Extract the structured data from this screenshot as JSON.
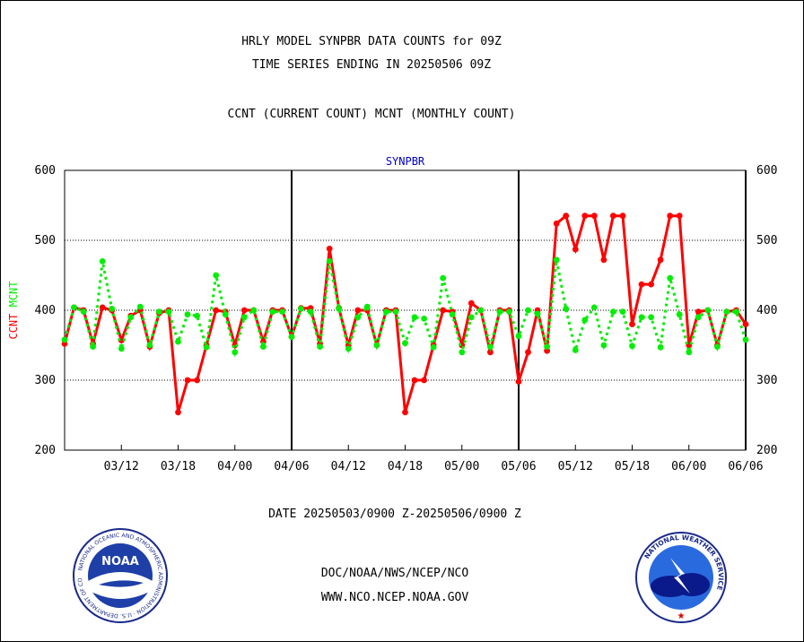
{
  "header": {
    "line1": "HRLY MODEL SYNPBR DATA COUNTS for 09Z",
    "line2": "TIME SERIES ENDING IN 20250506 09Z",
    "line3": "CCNT (CURRENT COUNT) MCNT (MONTHLY COUNT)"
  },
  "footer": {
    "date_range": "DATE 20250503/0900 Z-20250506/0900 Z",
    "org": "DOC/NOAA/NWS/NCEP/NCO",
    "url": "WWW.NCO.NCEP.NOAA.GOV"
  },
  "logos": {
    "noaa_text": "NOAA",
    "noaa_ring": "NATIONAL OCEANIC AND ATMOSPHERIC ADMINISTRATION · U.S. DEPARTMENT OF COMMERCE",
    "nws_ring": "NATIONAL WEATHER SERVICE"
  },
  "colors": {
    "ccnt": "#ff0000",
    "mcnt": "#00ee00",
    "title": "#0000cc",
    "grid": "#000000"
  },
  "chart_data": {
    "type": "line",
    "title": "SYNPBR",
    "ylabel_left": [
      "CCNT",
      "MCNT"
    ],
    "ylim": [
      200,
      600
    ],
    "yticks": [
      200,
      300,
      400,
      500,
      600
    ],
    "xtick_labels": [
      "03/12",
      "03/18",
      "04/00",
      "04/06",
      "04/12",
      "04/18",
      "05/00",
      "05/06",
      "05/12",
      "05/18",
      "06/00",
      "06/06"
    ],
    "day_boundaries": [
      "04/06",
      "05/06",
      "06/06"
    ],
    "grid": "horizontal dotted",
    "series": [
      {
        "name": "CCNT",
        "color": "#ff0000",
        "values": [
          352,
          404,
          400,
          352,
          404,
          400,
          357,
          392,
          400,
          348,
          396,
          400,
          254,
          300,
          300,
          350,
          400,
          398,
          350,
          400,
          400,
          355,
          400,
          400,
          362,
          403,
          403,
          352,
          488,
          403,
          350,
          400,
          400,
          350,
          400,
          400,
          254,
          300,
          300,
          350,
          400,
          398,
          350,
          410,
          400,
          340,
          400,
          400,
          298,
          340,
          400,
          342,
          524,
          535,
          487,
          535,
          535,
          472,
          535,
          535,
          380,
          437,
          437,
          472,
          535,
          535,
          350,
          398,
          400,
          350,
          398,
          400,
          380
        ]
      },
      {
        "name": "MCNT",
        "color": "#00ee00",
        "values": [
          358,
          404,
          398,
          348,
          470,
          402,
          345,
          390,
          405,
          350,
          398,
          398,
          355,
          394,
          392,
          347,
          450,
          394,
          340,
          390,
          400,
          348,
          398,
          398,
          362,
          402,
          398,
          348,
          470,
          402,
          345,
          390,
          405,
          350,
          398,
          398,
          353,
          390,
          388,
          347,
          446,
          394,
          340,
          390,
          400,
          348,
          398,
          398,
          363,
          400,
          395,
          348,
          472,
          402,
          343,
          386,
          404,
          350,
          398,
          398,
          349,
          390,
          390,
          347,
          446,
          394,
          340,
          390,
          400,
          348,
          398,
          398,
          358
        ]
      }
    ]
  }
}
